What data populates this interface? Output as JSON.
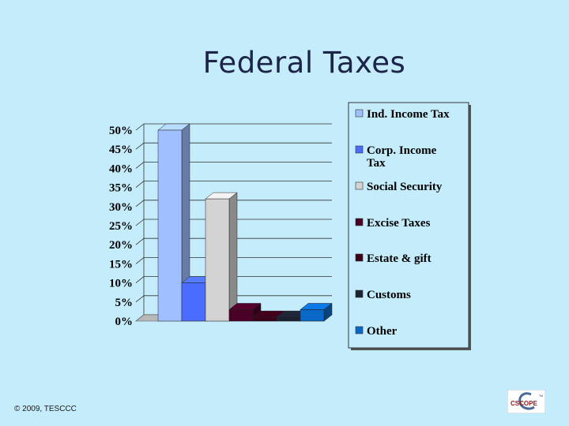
{
  "slide": {
    "title": "Federal Taxes",
    "footer": "© 2009, TESCCC",
    "logo_text": "CSCOPE",
    "logo_tm": "TM"
  },
  "chart_data": {
    "type": "bar",
    "categories": [
      "Ind. Income Tax",
      "Corp. Income Tax",
      "Social Security",
      "Excise Taxes",
      "Estate & gift",
      "Customs",
      "Other"
    ],
    "values": [
      50,
      10,
      32,
      3,
      1,
      1,
      3
    ],
    "colors": [
      "#9fbfff",
      "#4a6cff",
      "#d3d3d3",
      "#4a0026",
      "#3a0018",
      "#1c2232",
      "#0a68c8"
    ],
    "yticks": [
      "0%",
      "5%",
      "10%",
      "15%",
      "20%",
      "25%",
      "30%",
      "35%",
      "40%",
      "45%",
      "50%"
    ],
    "ylim": [
      0,
      50
    ],
    "legend": {
      "position": "right",
      "entries": [
        {
          "lines": [
            "Ind. Income Tax"
          ]
        },
        {
          "lines": [
            "Corp. Income",
            "Tax"
          ]
        },
        {
          "lines": [
            "Social Security"
          ]
        },
        {
          "lines": [
            "Excise Taxes"
          ]
        },
        {
          "lines": [
            "Estate & gift"
          ]
        },
        {
          "lines": [
            "Customs"
          ]
        },
        {
          "lines": [
            "Other"
          ]
        }
      ]
    },
    "grid": true,
    "three_d": true
  }
}
